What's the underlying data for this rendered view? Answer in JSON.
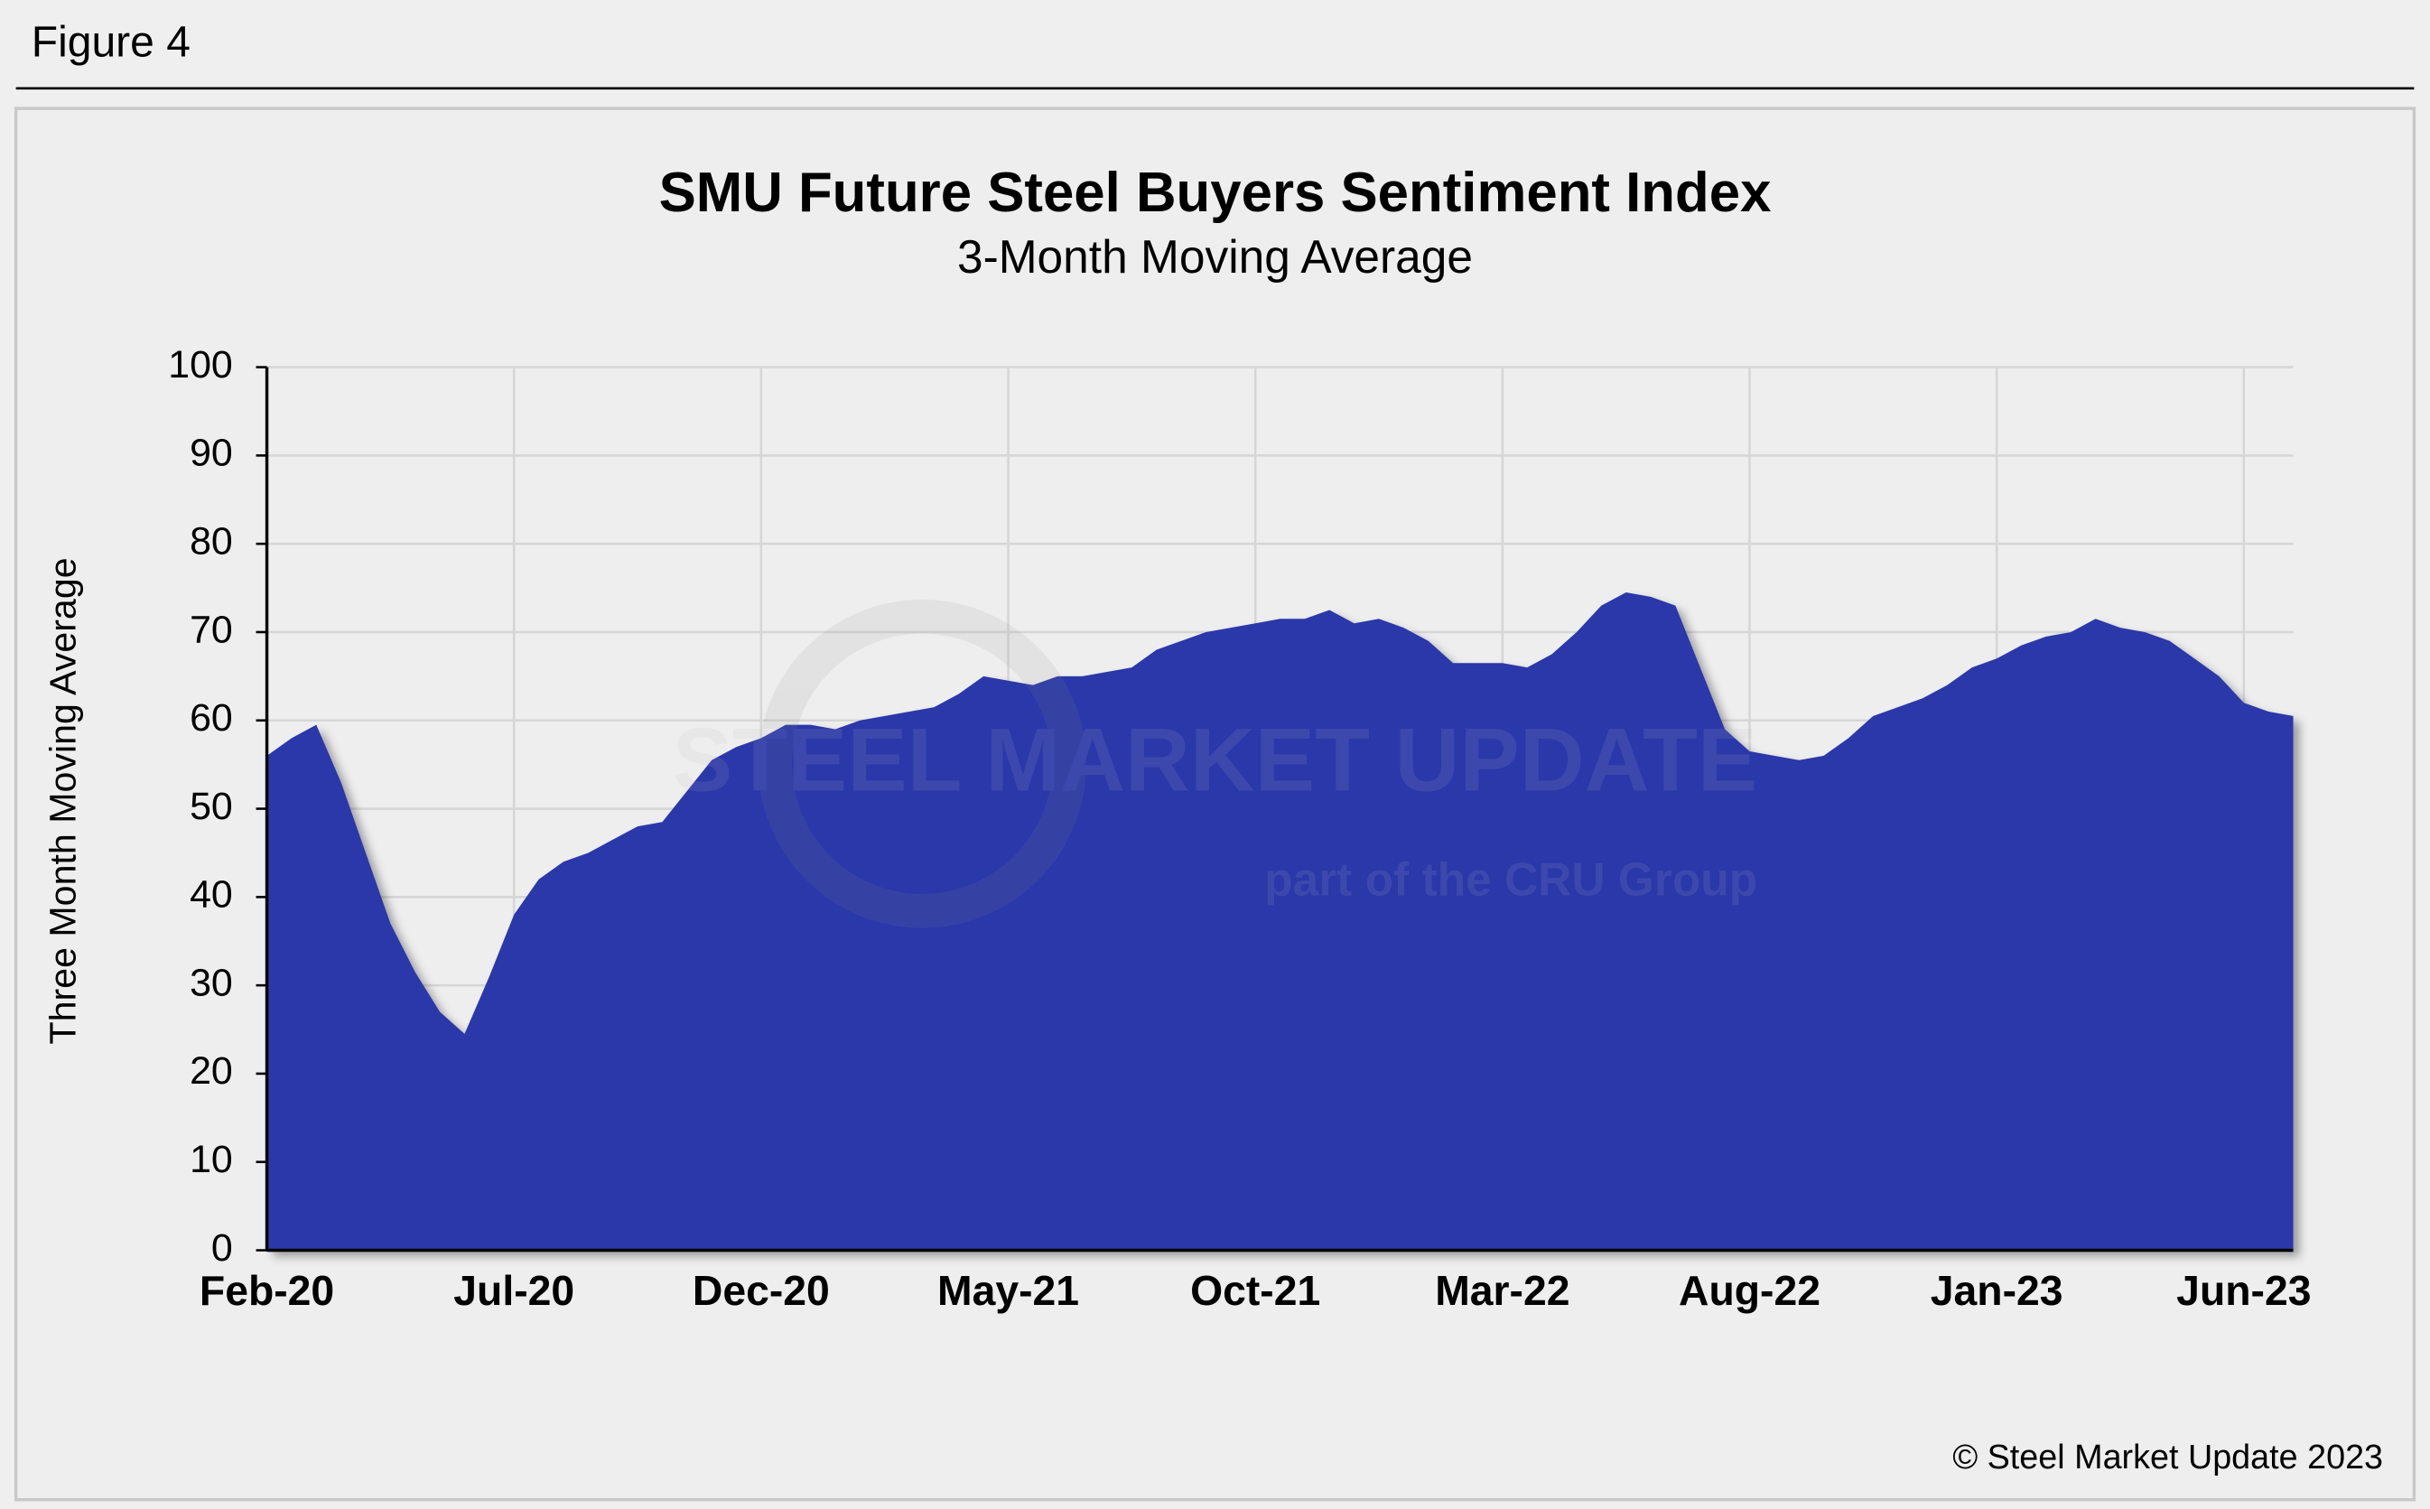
{
  "figure_label": "Figure 4",
  "copyright": "© Steel Market Update 2023",
  "watermark": {
    "brand": "STEEL MARKET UPDATE",
    "tagline": "part of the CRU Group"
  },
  "chart_data": {
    "type": "area",
    "title": "SMU Future Steel Buyers Sentiment Index",
    "subtitle": "3-Month Moving Average",
    "y_label": "Three Month Moving Average",
    "categories": [
      "Feb-20",
      null,
      null,
      null,
      null,
      null,
      null,
      null,
      null,
      null,
      "Jul-20",
      null,
      null,
      null,
      null,
      null,
      null,
      null,
      null,
      null,
      "Dec-20",
      null,
      null,
      null,
      null,
      null,
      null,
      null,
      null,
      null,
      "May-21",
      null,
      null,
      null,
      null,
      null,
      null,
      null,
      null,
      null,
      "Oct-21",
      null,
      null,
      null,
      null,
      null,
      null,
      null,
      null,
      null,
      "Mar-22",
      null,
      null,
      null,
      null,
      null,
      null,
      null,
      null,
      null,
      "Aug-22",
      null,
      null,
      null,
      null,
      null,
      null,
      null,
      null,
      null,
      "Jan-23",
      null,
      null,
      null,
      null,
      null,
      null,
      null,
      null,
      null,
      "Jun-23",
      null,
      null
    ],
    "values": [
      56,
      58,
      59.5,
      53,
      45,
      37,
      31.5,
      27,
      24.5,
      31,
      38,
      42,
      44,
      45,
      46.5,
      48,
      48.5,
      52,
      55.5,
      57,
      58,
      59.5,
      59.5,
      59,
      60,
      60.5,
      61,
      61.5,
      63,
      65,
      64.5,
      64,
      65,
      65,
      65.5,
      66,
      68,
      69,
      70,
      70.5,
      71,
      71.5,
      71.5,
      72.5,
      71,
      71.5,
      70.5,
      69,
      66.5,
      66.5,
      66.5,
      66,
      67.5,
      70,
      73,
      74.5,
      74,
      73,
      66,
      59,
      56.5,
      56,
      55.5,
      56,
      58,
      60.5,
      61.5,
      62.5,
      64,
      66,
      67,
      68.5,
      69.5,
      70,
      71.5,
      70.5,
      70,
      69,
      67,
      65,
      62,
      61,
      60.5
    ],
    "color": "#2a38a9",
    "ylim": [
      0,
      100
    ],
    "yticks": [
      0,
      10,
      20,
      30,
      40,
      50,
      60,
      70,
      80,
      90,
      100
    ],
    "grid": true
  }
}
